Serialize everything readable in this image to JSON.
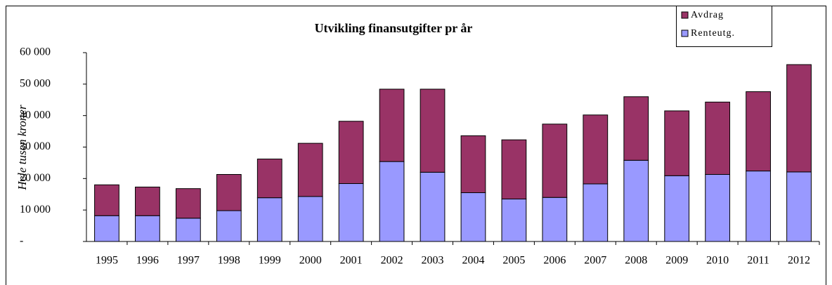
{
  "chart_data": {
    "type": "stacked_bar",
    "title": "Utvikling finansutgifter pr år",
    "y_label": "Hele tusen kroner",
    "categories": [
      "1995",
      "1996",
      "1997",
      "1998",
      "1999",
      "2000",
      "2001",
      "2002",
      "2003",
      "2004",
      "2005",
      "2006",
      "2007",
      "2008",
      "2009",
      "2010",
      "2011",
      "2012"
    ],
    "series": [
      {
        "name": "Renteutg.",
        "color": "#9999ff",
        "values": [
          8200,
          8200,
          7400,
          9800,
          13900,
          14300,
          18400,
          25400,
          22000,
          15500,
          13500,
          14000,
          18300,
          25800,
          20900,
          21300,
          22400,
          22100
        ]
      },
      {
        "name": "Avdrag",
        "color": "#993366",
        "values": [
          9800,
          9100,
          9400,
          11500,
          12300,
          16900,
          19800,
          23000,
          26400,
          18100,
          18800,
          23300,
          21900,
          20200,
          20600,
          23000,
          25200,
          34100
        ]
      }
    ],
    "ylim": [
      0,
      60000
    ],
    "yticks": [
      {
        "value": 0,
        "label": "-"
      },
      {
        "value": 10000,
        "label": "10 000"
      },
      {
        "value": 20000,
        "label": "20 000"
      },
      {
        "value": 30000,
        "label": "30 000"
      },
      {
        "value": 40000,
        "label": "40 000"
      },
      {
        "value": 50000,
        "label": "50 000"
      },
      {
        "value": 60000,
        "label": "60 000"
      }
    ],
    "grid": false,
    "legend": "top-right"
  }
}
